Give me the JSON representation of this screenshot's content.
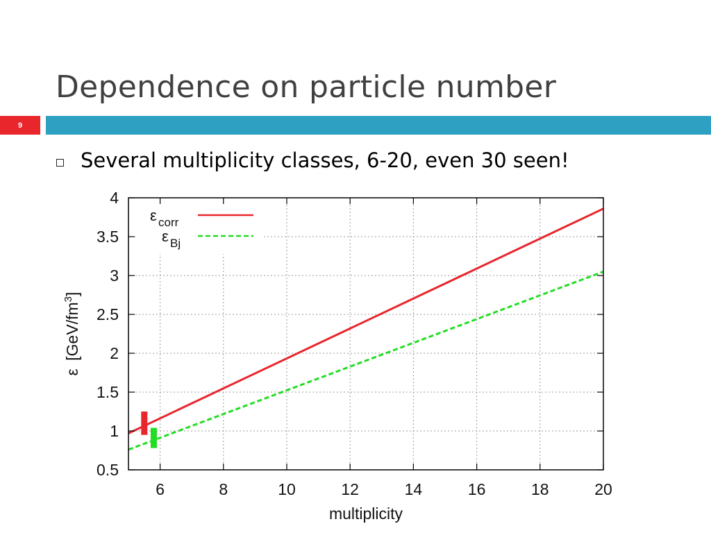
{
  "slide": {
    "title": "Dependence on particle number",
    "number": "9",
    "bullet": "Several multiplicity classes, 6-20, even 30 seen!"
  },
  "colors": {
    "accent_bar": "#2ea0c2",
    "number_badge": "#e8262c",
    "series_corr": "#e8262c",
    "series_bj": "#22dd22"
  },
  "chart_data": {
    "type": "line",
    "xlabel": "multiplicity",
    "ylabel_symbol": "ε",
    "ylabel_text": "[GeV/fm",
    "ylabel_sup": "3",
    "ylabel_close": "]",
    "xlim": [
      5,
      20
    ],
    "ylim": [
      0.5,
      4
    ],
    "xticks": [
      6,
      8,
      10,
      12,
      14,
      16,
      18,
      20
    ],
    "yticks": [
      0.5,
      1,
      1.5,
      2,
      2.5,
      3,
      3.5,
      4
    ],
    "ytick_labels": [
      "0.5",
      "1",
      "1.5",
      "2",
      "2.5",
      "3",
      "3.5",
      "4"
    ],
    "grid": true,
    "legend_position": "top-left",
    "series": [
      {
        "name_symbol": "ε",
        "name_sub": "corr",
        "style": "solid",
        "color": "#e8262c",
        "x": [
          5,
          20
        ],
        "y": [
          0.97,
          3.86
        ],
        "error_bar": {
          "x": 5.5,
          "y_low": 0.95,
          "y_high": 1.25
        }
      },
      {
        "name_symbol": "ε",
        "name_sub": "Bj",
        "style": "dashed",
        "color": "#22dd22",
        "x": [
          5,
          20
        ],
        "y": [
          0.76,
          3.05
        ],
        "error_bar": {
          "x": 5.8,
          "y_low": 0.78,
          "y_high": 1.04
        }
      }
    ]
  }
}
